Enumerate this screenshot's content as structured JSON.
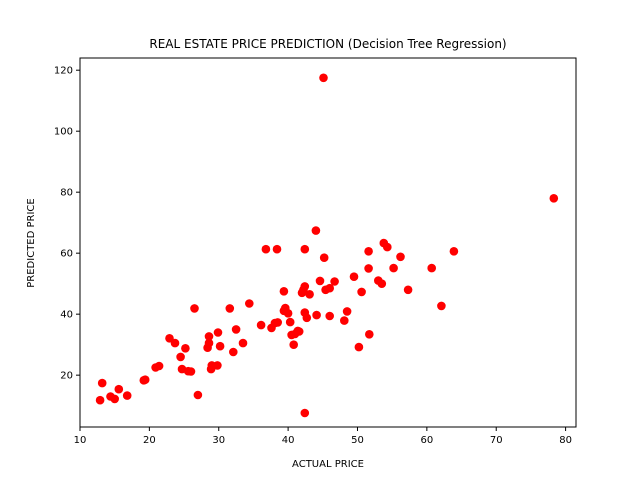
{
  "chart_data": {
    "type": "scatter",
    "title": "REAL ESTATE PRICE PREDICTION (Decision Tree Regression)",
    "xlabel": "ACTUAL PRICE",
    "ylabel": "PREDICTED PRICE",
    "xlim": [
      10,
      81.5
    ],
    "ylim": [
      3,
      124
    ],
    "xticks": [
      10,
      20,
      30,
      40,
      50,
      60,
      70,
      80
    ],
    "yticks": [
      20,
      40,
      60,
      80,
      100,
      120
    ],
    "grid": false,
    "marker_color": "#ff0000",
    "points": [
      [
        12.9,
        11.8
      ],
      [
        13.2,
        17.4
      ],
      [
        14.4,
        13.0
      ],
      [
        15.0,
        12.2
      ],
      [
        15.6,
        15.4
      ],
      [
        16.8,
        13.3
      ],
      [
        19.2,
        18.3
      ],
      [
        19.4,
        18.5
      ],
      [
        20.9,
        22.5
      ],
      [
        21.4,
        23.0
      ],
      [
        22.9,
        32.1
      ],
      [
        23.7,
        30.5
      ],
      [
        24.5,
        26.0
      ],
      [
        24.7,
        22.0
      ],
      [
        25.2,
        28.8
      ],
      [
        25.6,
        21.3
      ],
      [
        26.0,
        21.2
      ],
      [
        26.5,
        41.9
      ],
      [
        27.0,
        13.5
      ],
      [
        28.4,
        29.0
      ],
      [
        28.6,
        32.7
      ],
      [
        28.6,
        30.5
      ],
      [
        28.9,
        22.0
      ],
      [
        29.0,
        23.2
      ],
      [
        29.8,
        23.2
      ],
      [
        29.9,
        34.0
      ],
      [
        30.2,
        29.5
      ],
      [
        31.6,
        41.9
      ],
      [
        32.1,
        27.6
      ],
      [
        32.5,
        35.0
      ],
      [
        33.5,
        30.5
      ],
      [
        34.4,
        43.5
      ],
      [
        36.1,
        36.4
      ],
      [
        36.8,
        61.3
      ],
      [
        37.6,
        35.5
      ],
      [
        38.1,
        37.1
      ],
      [
        38.4,
        61.3
      ],
      [
        38.5,
        37.3
      ],
      [
        39.4,
        47.5
      ],
      [
        39.4,
        41.1
      ],
      [
        39.6,
        42.0
      ],
      [
        40.0,
        40.3
      ],
      [
        40.3,
        37.4
      ],
      [
        40.5,
        33.2
      ],
      [
        40.8,
        30.0
      ],
      [
        41.0,
        33.5
      ],
      [
        41.4,
        34.5
      ],
      [
        41.6,
        34.3
      ],
      [
        42.0,
        47.0
      ],
      [
        42.2,
        48.0
      ],
      [
        42.4,
        61.3
      ],
      [
        42.4,
        49.1
      ],
      [
        42.4,
        40.5
      ],
      [
        42.4,
        7.6
      ],
      [
        42.7,
        38.8
      ],
      [
        43.1,
        46.5
      ],
      [
        44.0,
        67.4
      ],
      [
        44.1,
        39.7
      ],
      [
        44.6,
        50.9
      ],
      [
        45.1,
        117.5
      ],
      [
        45.2,
        58.5
      ],
      [
        45.4,
        48.0
      ],
      [
        46.0,
        48.5
      ],
      [
        46.0,
        39.4
      ],
      [
        46.7,
        50.7
      ],
      [
        48.1,
        37.9
      ],
      [
        48.5,
        40.9
      ],
      [
        49.5,
        52.3
      ],
      [
        50.2,
        29.2
      ],
      [
        50.6,
        47.3
      ],
      [
        51.6,
        60.6
      ],
      [
        51.6,
        55.0
      ],
      [
        51.7,
        33.4
      ],
      [
        53.0,
        51.0
      ],
      [
        53.5,
        50.0
      ],
      [
        53.8,
        63.3
      ],
      [
        54.3,
        62.0
      ],
      [
        55.2,
        55.1
      ],
      [
        56.2,
        58.8
      ],
      [
        57.3,
        48.0
      ],
      [
        60.7,
        55.1
      ],
      [
        62.1,
        42.7
      ],
      [
        63.9,
        60.6
      ],
      [
        78.3,
        78.0
      ]
    ]
  }
}
